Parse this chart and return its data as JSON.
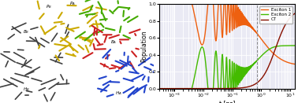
{
  "fig_width": 3.78,
  "fig_height": 1.31,
  "dpi": 100,
  "bg_color": "#eaeaf4",
  "grid_color": "#ffffff",
  "xmin": 0.0003,
  "xmax": 15.0,
  "ymin": 0.0,
  "ymax": 1.0,
  "xlabel": "t [ps]",
  "ylabel": "Population",
  "legend_labels": [
    "Exciton 1",
    "Exciton 2",
    "CT"
  ],
  "legend_colors": [
    "#ee6010",
    "#44bb00",
    "#881100"
  ],
  "vline_x": 0.7,
  "vline_color": "#888888"
}
